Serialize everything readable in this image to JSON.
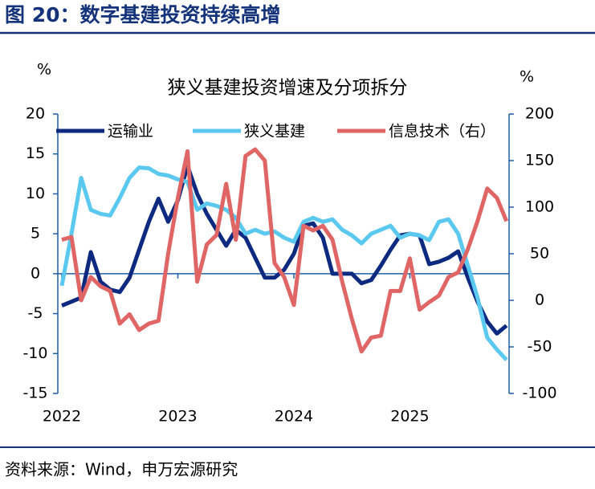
{
  "header": {
    "title": "图 20：数字基建投资持续高增"
  },
  "chart_data": {
    "type": "line",
    "title": "狭义基建投资增速及分项拆分",
    "y_label": "%",
    "y2_label": "%",
    "categories": [
      "2022",
      null,
      null,
      null,
      null,
      null,
      null,
      null,
      null,
      null,
      null,
      null,
      "2023",
      null,
      null,
      null,
      null,
      null,
      null,
      null,
      null,
      null,
      null,
      null,
      "2024",
      null,
      null,
      null,
      null,
      null,
      null,
      null,
      null,
      null,
      null,
      null,
      "2025",
      null,
      null,
      null,
      null,
      null,
      null,
      null,
      null,
      null,
      null
    ],
    "series": [
      {
        "name": "运输业",
        "color": "#0d2a80",
        "values": [
          -4,
          -3.5,
          -3,
          2.7,
          -1,
          -2,
          -2.3,
          -0.5,
          3,
          6.5,
          9.4,
          6.5,
          9.2,
          13.5,
          10,
          7.5,
          5.5,
          3.5,
          5.5,
          4.5,
          2,
          -0.5,
          -0.5,
          0.5,
          2.5,
          6,
          6.3,
          4.5,
          0,
          0,
          0,
          -1.2,
          -0.8,
          1,
          3,
          4.8,
          5,
          4.8,
          1.2,
          1.5,
          2,
          2.8,
          -0.5,
          -3.5,
          -6,
          -7.5,
          -6.5
        ]
      },
      {
        "name": "狭义基建",
        "color": "#5bc8f0",
        "values": [
          -1.5,
          5,
          12,
          8,
          7.5,
          7.3,
          9.5,
          12,
          13.3,
          13.2,
          12.5,
          12.3,
          11.8,
          11.5,
          8,
          8.8,
          8.5,
          8,
          7,
          5,
          5.5,
          5,
          5.3,
          4.5,
          4,
          6.5,
          7,
          6.5,
          6.8,
          5.5,
          4.8,
          3.8,
          5,
          5.5,
          6,
          4.5,
          5,
          4.8,
          4.2,
          6.5,
          6.8,
          5,
          1,
          -3,
          -8,
          -9.5,
          -10.8
        ]
      },
      {
        "name": "信息技术（右）",
        "color": "#e06666",
        "axis": "y2",
        "values": [
          65,
          68,
          0,
          25,
          15,
          10,
          -25,
          -15,
          -32,
          -25,
          -22,
          50,
          110,
          160,
          20,
          60,
          70,
          125,
          65,
          155,
          162,
          150,
          40,
          25,
          -5,
          80,
          75,
          80,
          65,
          20,
          -20,
          -55,
          -40,
          -38,
          10,
          10,
          45,
          -10,
          -2,
          5,
          25,
          30,
          55,
          85,
          120,
          110,
          85
        ]
      }
    ],
    "ylim": [
      -15,
      20
    ],
    "yticks": [
      -15,
      -10,
      -5,
      0,
      5,
      10,
      15,
      20
    ],
    "y2lim": [
      -100,
      200
    ],
    "y2ticks": [
      -100,
      -50,
      0,
      50,
      100,
      150,
      200
    ],
    "legend": "top"
  },
  "footer": {
    "source": "资料来源：Wind，申万宏源研究"
  }
}
